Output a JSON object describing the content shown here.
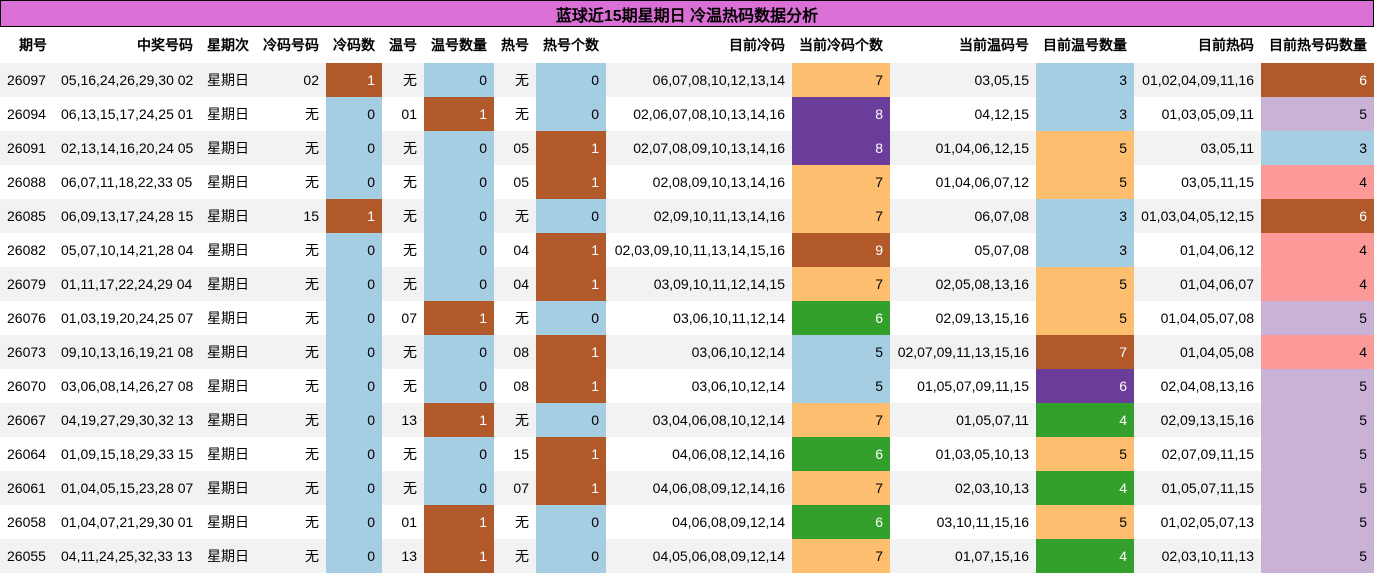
{
  "title": "蓝球近15期星期日 冷温热码数据分析",
  "colors": {
    "title_bg": "#da70d6",
    "zero_or_low": "#a6cee3",
    "one": "#b15928",
    "level_4": "#33a02c",
    "level_5": "#fdbf6f",
    "level_6": "#6a3d9a",
    "level_7": "#fdbf6f",
    "hot_3": "#a6cee3",
    "hot_4": "#fb9a99",
    "hot_5": "#cab2d6",
    "hot_6": "#b15928"
  },
  "columns": [
    "期号",
    "中奖号码",
    "星期次",
    "冷码号码",
    "冷码数",
    "温号",
    "温号数量",
    "热号",
    "热号个数",
    "目前冷码",
    "当前冷码个数",
    "当前温码号",
    "目前温号数量",
    "目前热码",
    "目前热号码数量"
  ],
  "rows": [
    {
      "issue": "26097",
      "numbers": "05,16,24,26,29,30 02",
      "weekday": "星期日",
      "cold_nums": "02",
      "cold_count": "1",
      "warm_nums": "无",
      "warm_count": "0",
      "hot_nums": "无",
      "hot_count": "0",
      "cur_cold": "06,07,08,10,12,13,14",
      "cur_cold_count": "7",
      "cur_warm": "03,05,15",
      "cur_warm_count": "3",
      "cur_hot": "01,02,04,09,11,16",
      "cur_hot_count": "6"
    },
    {
      "issue": "26094",
      "numbers": "06,13,15,17,24,25 01",
      "weekday": "星期日",
      "cold_nums": "无",
      "cold_count": "0",
      "warm_nums": "01",
      "warm_count": "1",
      "hot_nums": "无",
      "hot_count": "0",
      "cur_cold": "02,06,07,08,10,13,14,16",
      "cur_cold_count": "8",
      "cur_warm": "04,12,15",
      "cur_warm_count": "3",
      "cur_hot": "01,03,05,09,11",
      "cur_hot_count": "5"
    },
    {
      "issue": "26091",
      "numbers": "02,13,14,16,20,24 05",
      "weekday": "星期日",
      "cold_nums": "无",
      "cold_count": "0",
      "warm_nums": "无",
      "warm_count": "0",
      "hot_nums": "05",
      "hot_count": "1",
      "cur_cold": "02,07,08,09,10,13,14,16",
      "cur_cold_count": "8",
      "cur_warm": "01,04,06,12,15",
      "cur_warm_count": "5",
      "cur_hot": "03,05,11",
      "cur_hot_count": "3"
    },
    {
      "issue": "26088",
      "numbers": "06,07,11,18,22,33 05",
      "weekday": "星期日",
      "cold_nums": "无",
      "cold_count": "0",
      "warm_nums": "无",
      "warm_count": "0",
      "hot_nums": "05",
      "hot_count": "1",
      "cur_cold": "02,08,09,10,13,14,16",
      "cur_cold_count": "7",
      "cur_warm": "01,04,06,07,12",
      "cur_warm_count": "5",
      "cur_hot": "03,05,11,15",
      "cur_hot_count": "4"
    },
    {
      "issue": "26085",
      "numbers": "06,09,13,17,24,28 15",
      "weekday": "星期日",
      "cold_nums": "15",
      "cold_count": "1",
      "warm_nums": "无",
      "warm_count": "0",
      "hot_nums": "无",
      "hot_count": "0",
      "cur_cold": "02,09,10,11,13,14,16",
      "cur_cold_count": "7",
      "cur_warm": "06,07,08",
      "cur_warm_count": "3",
      "cur_hot": "01,03,04,05,12,15",
      "cur_hot_count": "6"
    },
    {
      "issue": "26082",
      "numbers": "05,07,10,14,21,28 04",
      "weekday": "星期日",
      "cold_nums": "无",
      "cold_count": "0",
      "warm_nums": "无",
      "warm_count": "0",
      "hot_nums": "04",
      "hot_count": "1",
      "cur_cold": "02,03,09,10,11,13,14,15,16",
      "cur_cold_count": "9",
      "cur_warm": "05,07,08",
      "cur_warm_count": "3",
      "cur_hot": "01,04,06,12",
      "cur_hot_count": "4"
    },
    {
      "issue": "26079",
      "numbers": "01,11,17,22,24,29 04",
      "weekday": "星期日",
      "cold_nums": "无",
      "cold_count": "0",
      "warm_nums": "无",
      "warm_count": "0",
      "hot_nums": "04",
      "hot_count": "1",
      "cur_cold": "03,09,10,11,12,14,15",
      "cur_cold_count": "7",
      "cur_warm": "02,05,08,13,16",
      "cur_warm_count": "5",
      "cur_hot": "01,04,06,07",
      "cur_hot_count": "4"
    },
    {
      "issue": "26076",
      "numbers": "01,03,19,20,24,25 07",
      "weekday": "星期日",
      "cold_nums": "无",
      "cold_count": "0",
      "warm_nums": "07",
      "warm_count": "1",
      "hot_nums": "无",
      "hot_count": "0",
      "cur_cold": "03,06,10,11,12,14",
      "cur_cold_count": "6",
      "cur_warm": "02,09,13,15,16",
      "cur_warm_count": "5",
      "cur_hot": "01,04,05,07,08",
      "cur_hot_count": "5"
    },
    {
      "issue": "26073",
      "numbers": "09,10,13,16,19,21 08",
      "weekday": "星期日",
      "cold_nums": "无",
      "cold_count": "0",
      "warm_nums": "无",
      "warm_count": "0",
      "hot_nums": "08",
      "hot_count": "1",
      "cur_cold": "03,06,10,12,14",
      "cur_cold_count": "5",
      "cur_warm": "02,07,09,11,13,15,16",
      "cur_warm_count": "7",
      "cur_hot": "01,04,05,08",
      "cur_hot_count": "4"
    },
    {
      "issue": "26070",
      "numbers": "03,06,08,14,26,27 08",
      "weekday": "星期日",
      "cold_nums": "无",
      "cold_count": "0",
      "warm_nums": "无",
      "warm_count": "0",
      "hot_nums": "08",
      "hot_count": "1",
      "cur_cold": "03,06,10,12,14",
      "cur_cold_count": "5",
      "cur_warm": "01,05,07,09,11,15",
      "cur_warm_count": "6",
      "cur_hot": "02,04,08,13,16",
      "cur_hot_count": "5"
    },
    {
      "issue": "26067",
      "numbers": "04,19,27,29,30,32 13",
      "weekday": "星期日",
      "cold_nums": "无",
      "cold_count": "0",
      "warm_nums": "13",
      "warm_count": "1",
      "hot_nums": "无",
      "hot_count": "0",
      "cur_cold": "03,04,06,08,10,12,14",
      "cur_cold_count": "7",
      "cur_warm": "01,05,07,11",
      "cur_warm_count": "4",
      "cur_hot": "02,09,13,15,16",
      "cur_hot_count": "5"
    },
    {
      "issue": "26064",
      "numbers": "01,09,15,18,29,33 15",
      "weekday": "星期日",
      "cold_nums": "无",
      "cold_count": "0",
      "warm_nums": "无",
      "warm_count": "0",
      "hot_nums": "15",
      "hot_count": "1",
      "cur_cold": "04,06,08,12,14,16",
      "cur_cold_count": "6",
      "cur_warm": "01,03,05,10,13",
      "cur_warm_count": "5",
      "cur_hot": "02,07,09,11,15",
      "cur_hot_count": "5"
    },
    {
      "issue": "26061",
      "numbers": "01,04,05,15,23,28 07",
      "weekday": "星期日",
      "cold_nums": "无",
      "cold_count": "0",
      "warm_nums": "无",
      "warm_count": "0",
      "hot_nums": "07",
      "hot_count": "1",
      "cur_cold": "04,06,08,09,12,14,16",
      "cur_cold_count": "7",
      "cur_warm": "02,03,10,13",
      "cur_warm_count": "4",
      "cur_hot": "01,05,07,11,15",
      "cur_hot_count": "5"
    },
    {
      "issue": "26058",
      "numbers": "01,04,07,21,29,30 01",
      "weekday": "星期日",
      "cold_nums": "无",
      "cold_count": "0",
      "warm_nums": "01",
      "warm_count": "1",
      "hot_nums": "无",
      "hot_count": "0",
      "cur_cold": "04,06,08,09,12,14",
      "cur_cold_count": "6",
      "cur_warm": "03,10,11,15,16",
      "cur_warm_count": "5",
      "cur_hot": "01,02,05,07,13",
      "cur_hot_count": "5"
    },
    {
      "issue": "26055",
      "numbers": "04,11,24,25,32,33 13",
      "weekday": "星期日",
      "cold_nums": "无",
      "cold_count": "0",
      "warm_nums": "13",
      "warm_count": "1",
      "hot_nums": "无",
      "hot_count": "0",
      "cur_cold": "04,05,06,08,09,12,14",
      "cur_cold_count": "7",
      "cur_warm": "01,07,15,16",
      "cur_warm_count": "4",
      "cur_hot": "02,03,10,11,13",
      "cur_hot_count": "5"
    }
  ]
}
